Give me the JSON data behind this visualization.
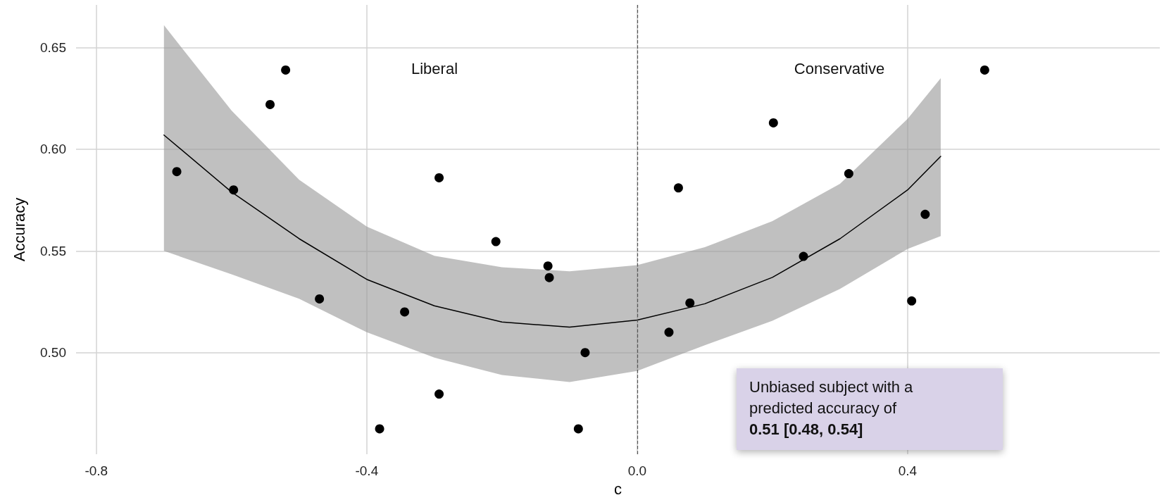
{
  "chart_data": {
    "type": "scatter",
    "xlabel": "c",
    "ylabel": "Accuracy",
    "xlim": [
      -0.83,
      0.773
    ],
    "ylim": [
      0.45,
      0.671
    ],
    "xticks": [
      -0.8,
      -0.4,
      {
        "value": 0,
        "label": "0.0"
      },
      0.4
    ],
    "yticks": [
      {
        "value": 0.5,
        "label": "0.50"
      },
      0.55,
      {
        "value": 0.6,
        "label": "0.60"
      },
      0.65
    ],
    "grid": true,
    "series": [
      {
        "marker": "circle",
        "color": "#000000",
        "x": [
          -0.681,
          -0.597,
          -0.543,
          -0.52,
          -0.293,
          -0.209,
          -0.47,
          -0.344,
          -0.293,
          -0.381,
          -0.132,
          -0.13,
          -0.087,
          -0.077,
          0.061,
          0.2015,
          0.313,
          0.426,
          0.514,
          0.078,
          0.047,
          0.246,
          0.406
        ],
        "values": [
          0.589,
          0.58,
          0.622,
          0.639,
          0.586,
          0.5546,
          0.5264,
          0.52,
          0.4796,
          0.4625,
          0.5426,
          0.5369,
          0.4625,
          0.5,
          0.581,
          0.613,
          0.588,
          0.568,
          0.639,
          0.5244,
          0.51,
          0.5473,
          0.5254
        ]
      },
      {
        "type": "line",
        "color": "#000000",
        "x": [
          -0.7,
          -0.6,
          -0.5,
          -0.4,
          -0.3,
          -0.2,
          -0.1,
          0,
          0.1,
          0.2,
          0.3,
          0.4,
          0.449
        ],
        "values": [
          0.607,
          0.579,
          0.556,
          0.536,
          0.523,
          0.515,
          0.5125,
          0.516,
          0.524,
          0.537,
          0.556,
          0.58,
          0.5965
        ],
        "lower": [
          0.55,
          0.5385,
          0.5265,
          0.51,
          0.4975,
          0.489,
          0.4855,
          0.491,
          0.5036,
          0.5156,
          0.5313,
          0.551,
          0.5573
        ],
        "upper": [
          0.661,
          0.619,
          0.585,
          0.562,
          0.5476,
          0.542,
          0.54,
          0.543,
          0.5518,
          0.5647,
          0.583,
          0.615,
          0.635
        ]
      }
    ],
    "ref_lines": [
      {
        "axis": "x",
        "value": 0,
        "color": "#555555",
        "line_style": "dashed"
      }
    ],
    "annotations": [
      "Liberal",
      "Conservative",
      "Unbiased subject with a",
      "predicted accuracy of",
      "0.51 [0.48, 0.54]"
    ]
  }
}
